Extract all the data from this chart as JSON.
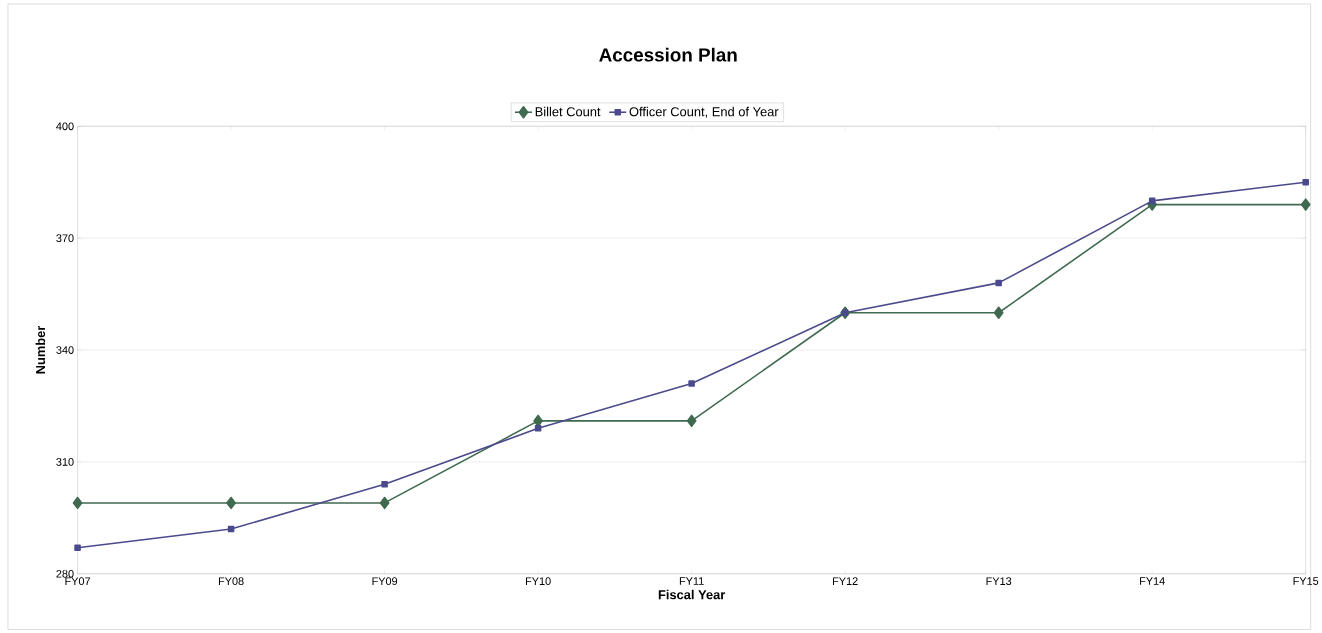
{
  "chart_data": {
    "type": "line",
    "title": "Accession Plan",
    "xlabel": "Fiscal Year",
    "ylabel": "Number",
    "categories": [
      "FY07",
      "FY08",
      "FY09",
      "FY10",
      "FY11",
      "FY12",
      "FY13",
      "FY14",
      "FY15"
    ],
    "series": [
      {
        "name": "Billet Count",
        "color": "#3f6a50",
        "marker": "diamond",
        "values": [
          299,
          299,
          299,
          321,
          321,
          350,
          350,
          379,
          379
        ]
      },
      {
        "name": "Officer Count, End of Year",
        "color": "#4a4a8c",
        "marker": "square",
        "values": [
          287,
          292,
          304,
          319,
          331,
          350,
          358,
          380,
          385
        ]
      }
    ],
    "ylim": [
      280,
      400
    ],
    "yticks": [
      280,
      310,
      340,
      370,
      400
    ],
    "grid": "y",
    "legend": "top",
    "line_style": "solid"
  }
}
